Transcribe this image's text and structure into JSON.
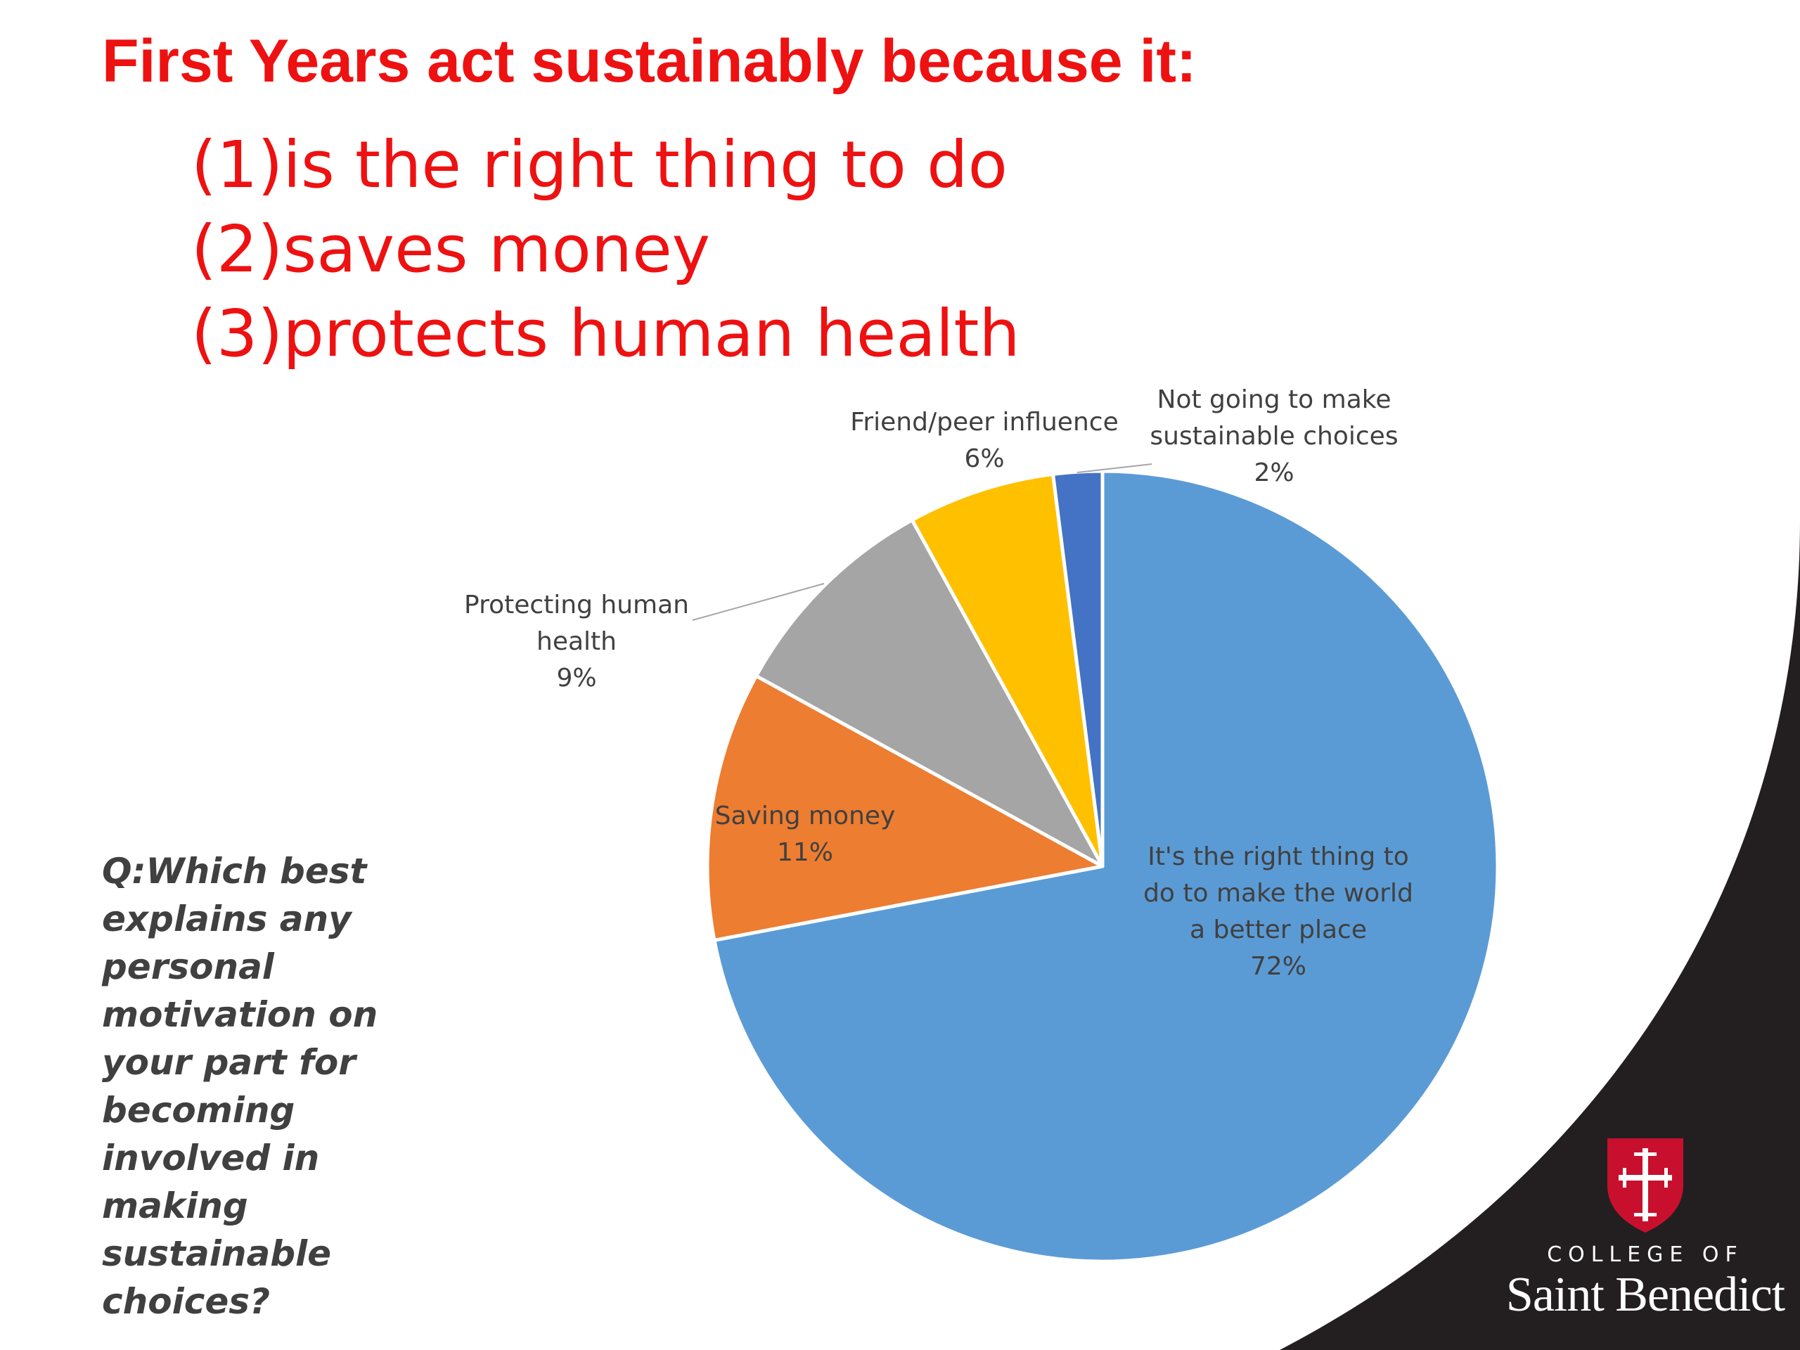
{
  "slide": {
    "title": "First Years act sustainably because it:",
    "reasons": [
      "(1)is the right thing to do",
      "(2)saves money",
      "(3)protects human health"
    ],
    "question": "Q:Which best explains any personal motivation on your part for becoming involved in making sustainable choices?"
  },
  "logo": {
    "line1": "COLLEGE OF",
    "line2": "Saint Benedict"
  },
  "colors": {
    "title": "#ee1111",
    "swoosh": "#231f20",
    "shield": "#c8102e"
  },
  "chart_data": {
    "type": "pie",
    "title": "",
    "start_angle": "12 o'clock",
    "direction": "clockwise",
    "series": [
      {
        "slices": [
          {
            "label": "It's the right thing to do to make the world a better place",
            "display_lines": [
              "It's the right thing to",
              "do to make the world",
              "a better place"
            ],
            "value": 72,
            "value_label": "72%",
            "color": "#5b9bd5"
          },
          {
            "label": "Saving money",
            "display_lines": [
              "Saving money"
            ],
            "value": 11,
            "value_label": "11%",
            "color": "#ed7d31"
          },
          {
            "label": "Protecting human health",
            "display_lines": [
              "Protecting human",
              "health"
            ],
            "value": 9,
            "value_label": "9%",
            "color": "#a5a5a5"
          },
          {
            "label": "Friend/peer influence",
            "display_lines": [
              "Friend/peer influence"
            ],
            "value": 6,
            "value_label": "6%",
            "color": "#ffc000"
          },
          {
            "label": "Not going to make sustainable choices",
            "display_lines": [
              "Not going to make",
              "sustainable choices"
            ],
            "value": 2,
            "value_label": "2%",
            "color": "#4472c4"
          }
        ]
      }
    ]
  }
}
